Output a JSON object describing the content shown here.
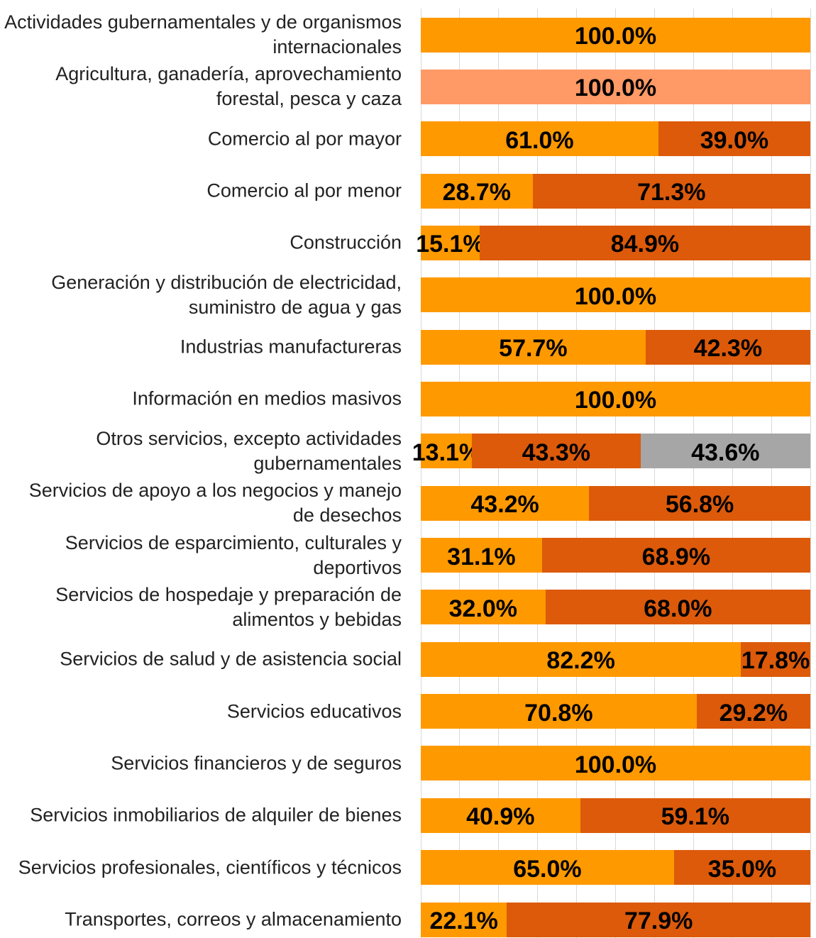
{
  "chart_data": {
    "type": "bar",
    "orientation": "horizontal",
    "stacked": true,
    "categories": [
      "Actividades gubernamentales y de organismos internacionales",
      "Agricultura, ganadería, aprovechamiento forestal, pesca y caza",
      "Comercio al por mayor",
      "Comercio al por menor",
      "Construcción",
      "Generación y distribución de electricidad, suministro de agua y gas",
      "Industrias manufactureras",
      "Información en medios masivos",
      "Otros servicios, excepto actividades gubernamentales",
      "Servicios de apoyo a los negocios y manejo de desechos",
      "Servicios de esparcimiento, culturales y deportivos",
      "Servicios de hospedaje y preparación de alimentos y bebidas",
      "Servicios de salud y de asistencia social",
      "Servicios educativos",
      "Servicios financieros y de seguros",
      "Servicios inmobiliarios de alquiler de bienes",
      "Servicios profesionales, científicos y técnicos",
      "Transportes, correos y almacenamiento"
    ],
    "series": [
      {
        "color": "#FF9900",
        "values": [
          100,
          null,
          61,
          28.7,
          15.1,
          100,
          57.7,
          100,
          13.1,
          43.2,
          31.1,
          32,
          82.2,
          70.8,
          100,
          40.9,
          65,
          22.1
        ],
        "value_labels": [
          "100.0%",
          null,
          "61.0%",
          "28.7%",
          "15.1%",
          "100.0%",
          "57.7%",
          "100.0%",
          "13.1%",
          "43.2%",
          "31.1%",
          "32.0%",
          "82.2%",
          "70.8%",
          "100.0%",
          "40.9%",
          "65.0%",
          "22.1%"
        ]
      },
      {
        "color": "#DC5A0A",
        "values": [
          null,
          null,
          39,
          71.3,
          84.9,
          null,
          42.3,
          null,
          43.3,
          56.8,
          68.9,
          68,
          17.8,
          29.2,
          null,
          59.1,
          35,
          77.9
        ],
        "value_labels": [
          null,
          null,
          "39.0%",
          "71.3%",
          "84.9%",
          null,
          "42.3%",
          null,
          "43.3%",
          "56.8%",
          "68.9%",
          "68.0%",
          "17.8%",
          "29.2%",
          null,
          "59.1%",
          "35.0%",
          "77.9%"
        ]
      },
      {
        "color": "#A6A6A6",
        "values": [
          null,
          null,
          null,
          null,
          null,
          null,
          null,
          null,
          43.6,
          null,
          null,
          null,
          null,
          null,
          null,
          null,
          null,
          null
        ],
        "value_labels": [
          null,
          null,
          null,
          null,
          null,
          null,
          null,
          null,
          "43.6%",
          null,
          null,
          null,
          null,
          null,
          null,
          null,
          null,
          null
        ]
      },
      {
        "color": "#FF9966",
        "values": [
          null,
          100,
          null,
          null,
          null,
          null,
          null,
          null,
          null,
          null,
          null,
          null,
          null,
          null,
          null,
          null,
          null,
          null
        ],
        "value_labels": [
          null,
          "100.0%",
          null,
          null,
          null,
          null,
          null,
          null,
          null,
          null,
          null,
          null,
          null,
          null,
          null,
          null,
          null,
          null
        ]
      }
    ],
    "xlim": [
      0,
      100
    ],
    "xticks": [
      0,
      10,
      20,
      30,
      40,
      50,
      60,
      70,
      80,
      90,
      100
    ],
    "grid": true
  }
}
